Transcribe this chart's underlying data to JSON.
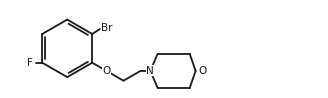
{
  "background_color": "#ffffff",
  "line_color": "#1a1a1a",
  "line_width": 1.3,
  "font_size": 7.5,
  "label_Br": "Br",
  "label_F": "F",
  "label_O1": "O",
  "label_N": "N",
  "label_O2": "O",
  "xlim": [
    0,
    10
  ],
  "ylim": [
    0,
    3.0
  ]
}
